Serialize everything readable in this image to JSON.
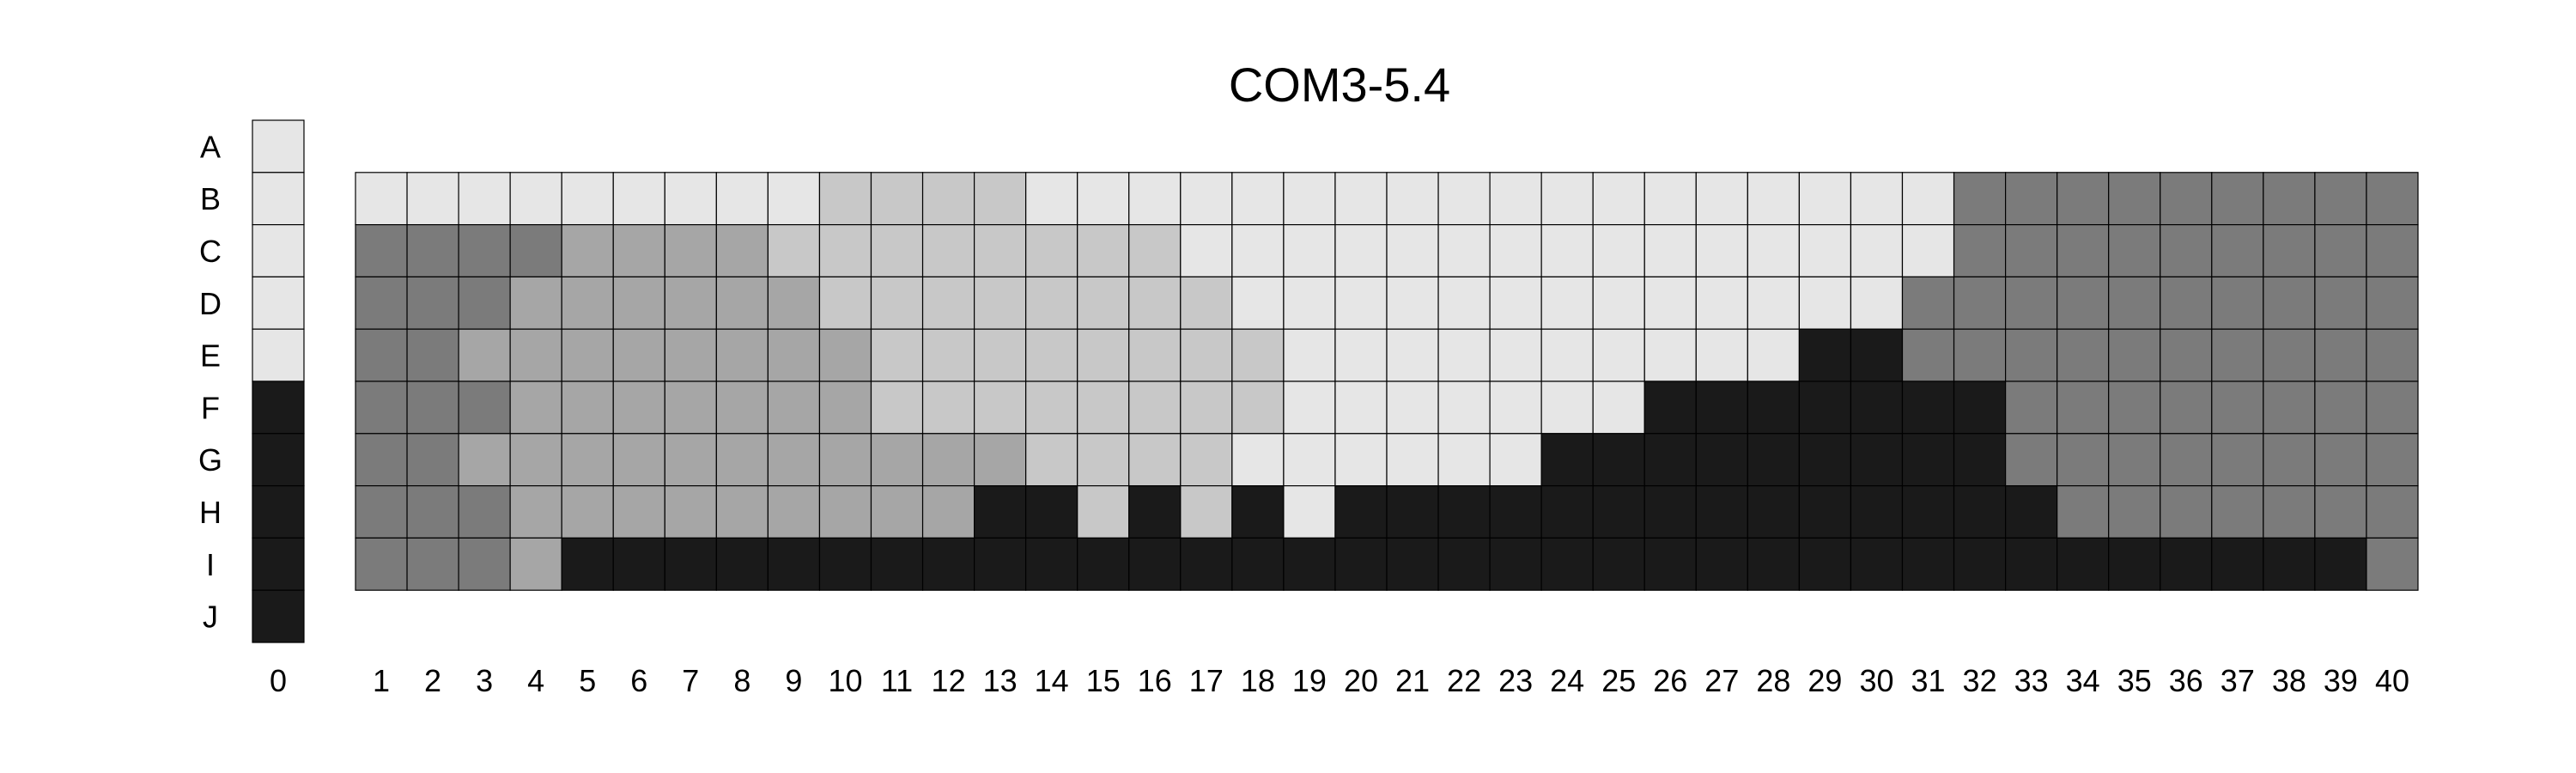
{
  "chart_data": {
    "type": "heatmap",
    "title": "COM3-5.4",
    "row_labels": [
      "A",
      "B",
      "C",
      "D",
      "E",
      "F",
      "G",
      "H",
      "I",
      "J"
    ],
    "column_labels": [
      "0",
      "1",
      "2",
      "3",
      "4",
      "5",
      "6",
      "7",
      "8",
      "9",
      "10",
      "11",
      "12",
      "13",
      "14",
      "15",
      "16",
      "17",
      "18",
      "19",
      "20",
      "21",
      "22",
      "23",
      "24",
      "25",
      "26",
      "27",
      "28",
      "29",
      "30",
      "31",
      "32",
      "33",
      "34",
      "35",
      "36",
      "37",
      "38",
      "39",
      "40"
    ],
    "scale_column": {
      "label": "0",
      "rows": [
        "A",
        "B",
        "C",
        "D",
        "E",
        "F",
        "G",
        "H",
        "I",
        "J"
      ],
      "levels": [
        0,
        0,
        0,
        0,
        0,
        4,
        4,
        4,
        4,
        4
      ]
    },
    "grid_rows": [
      "B",
      "C",
      "D",
      "E",
      "F",
      "G",
      "H",
      "I"
    ],
    "levels": [
      [
        0,
        0,
        0,
        0,
        0,
        0,
        0,
        0,
        0,
        1,
        1,
        1,
        1,
        0,
        0,
        0,
        0,
        0,
        0,
        0,
        0,
        0,
        0,
        0,
        0,
        0,
        0,
        0,
        0,
        0,
        0,
        3,
        3,
        3,
        3,
        3,
        3,
        3,
        3,
        3
      ],
      [
        3,
        3,
        3,
        3,
        2,
        2,
        2,
        2,
        1,
        1,
        1,
        1,
        1,
        1,
        1,
        1,
        0,
        0,
        0,
        0,
        0,
        0,
        0,
        0,
        0,
        0,
        0,
        0,
        0,
        0,
        0,
        3,
        3,
        3,
        3,
        3,
        3,
        3,
        3,
        3
      ],
      [
        3,
        3,
        3,
        2,
        2,
        2,
        2,
        2,
        2,
        1,
        1,
        1,
        1,
        1,
        1,
        1,
        1,
        0,
        0,
        0,
        0,
        0,
        0,
        0,
        0,
        0,
        0,
        0,
        0,
        0,
        3,
        3,
        3,
        3,
        3,
        3,
        3,
        3,
        3,
        3
      ],
      [
        3,
        3,
        2,
        2,
        2,
        2,
        2,
        2,
        2,
        2,
        1,
        1,
        1,
        1,
        1,
        1,
        1,
        1,
        0,
        0,
        0,
        0,
        0,
        0,
        0,
        0,
        0,
        0,
        4,
        4,
        3,
        3,
        3,
        3,
        3,
        3,
        3,
        3,
        3,
        3
      ],
      [
        3,
        3,
        3,
        2,
        2,
        2,
        2,
        2,
        2,
        2,
        1,
        1,
        1,
        1,
        1,
        1,
        1,
        1,
        0,
        0,
        0,
        0,
        0,
        0,
        0,
        4,
        4,
        4,
        4,
        4,
        4,
        4,
        3,
        3,
        3,
        3,
        3,
        3,
        3,
        3
      ],
      [
        3,
        3,
        2,
        2,
        2,
        2,
        2,
        2,
        2,
        2,
        2,
        2,
        2,
        1,
        1,
        1,
        1,
        0,
        0,
        0,
        0,
        0,
        0,
        4,
        4,
        4,
        4,
        4,
        4,
        4,
        4,
        4,
        3,
        3,
        3,
        3,
        3,
        3,
        3,
        3
      ],
      [
        3,
        3,
        3,
        2,
        2,
        2,
        2,
        2,
        2,
        2,
        2,
        2,
        4,
        4,
        1,
        4,
        1,
        4,
        0,
        4,
        4,
        4,
        4,
        4,
        4,
        4,
        4,
        4,
        4,
        4,
        4,
        4,
        4,
        3,
        3,
        3,
        3,
        3,
        3,
        3
      ],
      [
        3,
        3,
        3,
        2,
        4,
        4,
        4,
        4,
        4,
        4,
        4,
        4,
        4,
        4,
        4,
        4,
        4,
        4,
        4,
        4,
        4,
        4,
        4,
        4,
        4,
        4,
        4,
        4,
        4,
        4,
        4,
        4,
        4,
        4,
        4,
        4,
        4,
        4,
        4,
        3
      ]
    ],
    "level_colors": [
      "#e6e6e6",
      "#c8c8c8",
      "#a6a6a6",
      "#7b7b7b",
      "#1a1a1a"
    ]
  }
}
